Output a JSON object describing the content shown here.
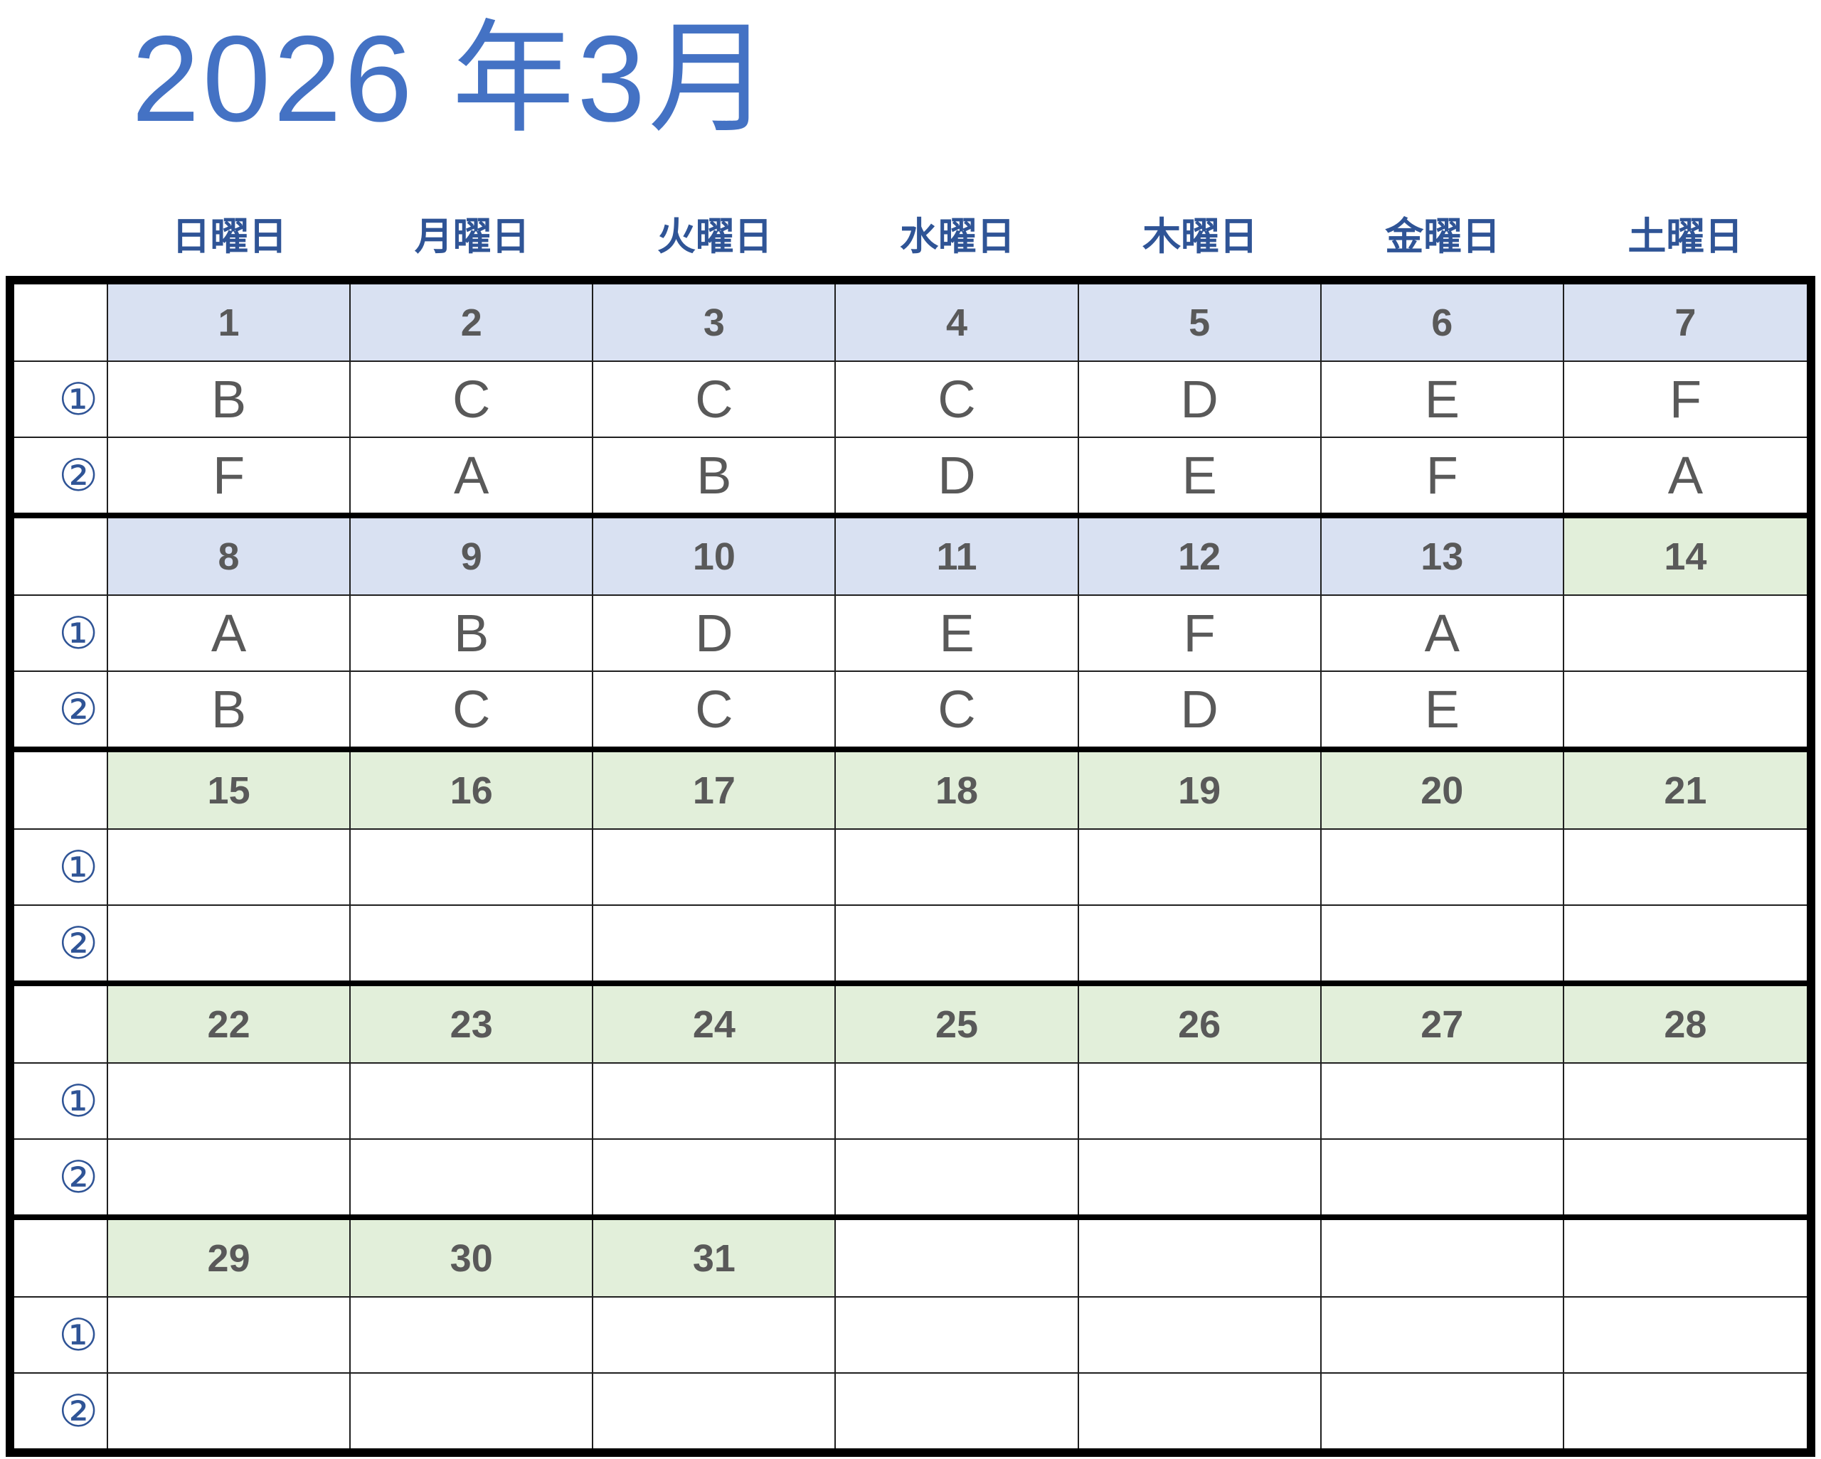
{
  "title": "2026 年3月",
  "weekday_headers": [
    "日曜日",
    "月曜日",
    "火曜日",
    "水曜日",
    "木曜日",
    "金曜日",
    "土曜日"
  ],
  "slot_labels": [
    "①",
    "②"
  ],
  "weeks": [
    {
      "dates": [
        "1",
        "2",
        "3",
        "4",
        "5",
        "6",
        "7"
      ],
      "date_bg": [
        "blue",
        "blue",
        "blue",
        "blue",
        "blue",
        "blue",
        "blue"
      ],
      "slot1": [
        "B",
        "C",
        "C",
        "C",
        "D",
        "E",
        "F"
      ],
      "slot2": [
        "F",
        "A",
        "B",
        "D",
        "E",
        "F",
        "A"
      ]
    },
    {
      "dates": [
        "8",
        "9",
        "10",
        "11",
        "12",
        "13",
        "14"
      ],
      "date_bg": [
        "blue",
        "blue",
        "blue",
        "blue",
        "blue",
        "blue",
        "green"
      ],
      "slot1": [
        "A",
        "B",
        "D",
        "E",
        "F",
        "A",
        ""
      ],
      "slot2": [
        "B",
        "C",
        "C",
        "C",
        "D",
        "E",
        ""
      ]
    },
    {
      "dates": [
        "15",
        "16",
        "17",
        "18",
        "19",
        "20",
        "21"
      ],
      "date_bg": [
        "green",
        "green",
        "green",
        "green",
        "green",
        "green",
        "green"
      ],
      "slot1": [
        "",
        "",
        "",
        "",
        "",
        "",
        ""
      ],
      "slot2": [
        "",
        "",
        "",
        "",
        "",
        "",
        ""
      ]
    },
    {
      "dates": [
        "22",
        "23",
        "24",
        "25",
        "26",
        "27",
        "28"
      ],
      "date_bg": [
        "green",
        "green",
        "green",
        "green",
        "green",
        "green",
        "green"
      ],
      "slot1": [
        "",
        "",
        "",
        "",
        "",
        "",
        ""
      ],
      "slot2": [
        "",
        "",
        "",
        "",
        "",
        "",
        ""
      ]
    },
    {
      "dates": [
        "29",
        "30",
        "31",
        "",
        "",
        "",
        ""
      ],
      "date_bg": [
        "green",
        "green",
        "green",
        "white",
        "white",
        "white",
        "white"
      ],
      "slot1": [
        "",
        "",
        "",
        "",
        "",
        "",
        ""
      ],
      "slot2": [
        "",
        "",
        "",
        "",
        "",
        "",
        ""
      ]
    }
  ],
  "colors": {
    "title_blue": "#4472C4",
    "weekday_navy": "#2F5496",
    "date_gray": "#595959",
    "letter_gray": "#595959",
    "label_navy": "#2F5496",
    "week_blue_bg": "#D9E1F2",
    "week_green_bg": "#E2EFDA",
    "border_black": "#000000"
  }
}
